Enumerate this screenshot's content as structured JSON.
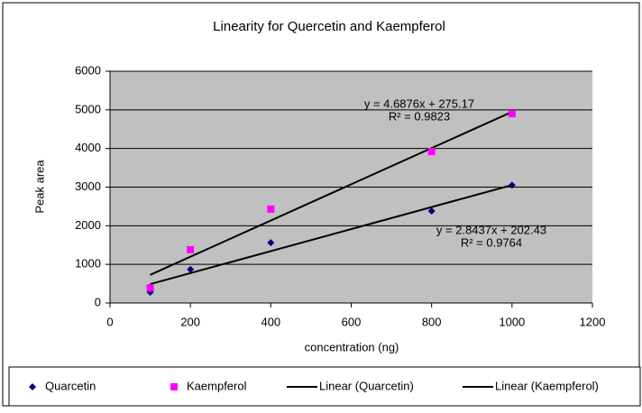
{
  "chart_data": {
    "type": "scatter",
    "title": "Linearity for Quercetin and Kaempferol",
    "xlabel": "concentration (ng)",
    "ylabel": "Peak area",
    "xlim": [
      0,
      1200
    ],
    "xticks": [
      0,
      200,
      400,
      600,
      800,
      1000,
      1200
    ],
    "ylim": [
      0,
      6000
    ],
    "yticks": [
      0,
      1000,
      2000,
      3000,
      4000,
      5000,
      6000
    ],
    "grid": true,
    "legend": "bottom",
    "series": [
      {
        "name": "Quarcetin",
        "color": "#000080",
        "marker": "diamond",
        "trendline": "Linear (Quarcetin)",
        "x": [
          100,
          200,
          400,
          800,
          1000
        ],
        "values": [
          280,
          870,
          1560,
          2380,
          3050
        ]
      },
      {
        "name": "Kaempferol",
        "color": "#ff00ff",
        "marker": "square",
        "trendline": "Linear (Kaempferol)",
        "x": [
          100,
          200,
          400,
          800,
          1000
        ],
        "values": [
          390,
          1380,
          2430,
          3920,
          4900
        ]
      }
    ],
    "annotations": [
      "y = 4.6876x + 275.17",
      "R² = 0.9823",
      "y = 2.8437x + 202.43",
      "R² = 0.9764"
    ]
  }
}
